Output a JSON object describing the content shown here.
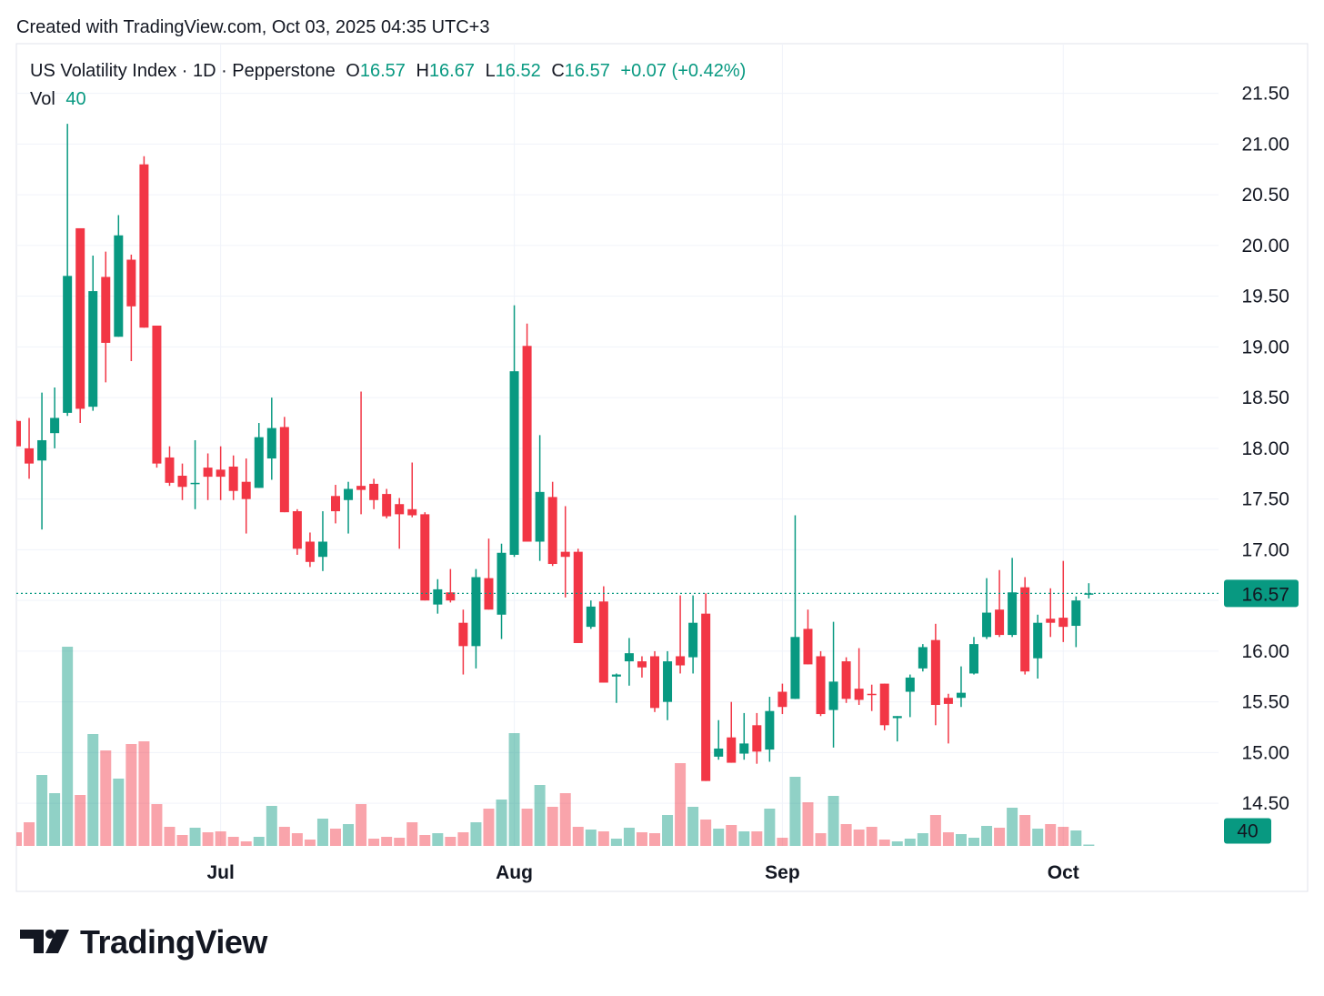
{
  "chart_data": {
    "type": "candlestick",
    "header": "Created with TradingView.com, Oct 03, 2025 04:35 UTC+3",
    "title": "US Volatility Index · 1D · Pepperstone",
    "legend": {
      "o_label": "O",
      "h_label": "H",
      "l_label": "L",
      "c_label": "C",
      "open": 16.57,
      "high": 16.67,
      "low": 16.52,
      "close": 16.57,
      "change": "+0.07 (+0.42%)",
      "vol_label": "Vol",
      "volume": 40
    },
    "footer_logo": "TradingView",
    "up_color": "#089981",
    "down_color": "#f23645",
    "grid": true,
    "categories": [
      null,
      null,
      null,
      null,
      null,
      null,
      null,
      null,
      null,
      null,
      null,
      null,
      null,
      null,
      null,
      null,
      "Jul",
      null,
      null,
      null,
      null,
      null,
      null,
      null,
      null,
      null,
      null,
      null,
      null,
      null,
      null,
      null,
      null,
      null,
      null,
      null,
      null,
      null,
      null,
      "Aug",
      null,
      null,
      null,
      null,
      null,
      null,
      null,
      null,
      null,
      null,
      null,
      null,
      null,
      null,
      null,
      null,
      null,
      null,
      null,
      null,
      "Sep",
      null,
      null,
      null,
      null,
      null,
      null,
      null,
      null,
      null,
      null,
      null,
      null,
      null,
      null,
      null,
      null,
      null,
      null,
      null,
      null,
      null,
      "Oct",
      null,
      null
    ],
    "open": [
      18.27,
      18.0,
      17.88,
      18.15,
      18.35,
      20.17,
      18.41,
      19.69,
      19.1,
      19.86,
      20.8,
      19.21,
      17.91,
      17.73,
      17.65,
      17.81,
      17.79,
      17.82,
      17.67,
      17.61,
      17.9,
      18.21,
      17.38,
      17.08,
      16.93,
      17.53,
      17.49,
      17.63,
      17.65,
      17.55,
      17.45,
      17.4,
      17.35,
      16.46,
      16.58,
      16.28,
      16.05,
      16.72,
      16.36,
      16.95,
      19.01,
      17.08,
      17.52,
      16.98,
      16.98,
      16.24,
      16.49,
      15.75,
      15.9,
      15.9,
      15.95,
      15.5,
      15.95,
      15.94,
      16.37,
      14.96,
      15.15,
      14.99,
      15.27,
      15.03,
      15.6,
      15.53,
      16.22,
      15.95,
      15.42,
      15.9,
      15.63,
      15.58,
      15.68,
      15.34,
      15.6,
      15.83,
      16.11,
      15.54,
      15.54,
      15.78,
      16.14,
      16.41,
      16.16,
      16.63,
      15.93,
      16.32,
      16.33,
      16.25,
      16.57
    ],
    "high": [
      18.28,
      18.3,
      18.55,
      18.6,
      21.2,
      20.17,
      19.9,
      19.94,
      20.3,
      19.91,
      20.88,
      19.21,
      18.02,
      17.85,
      18.08,
      17.95,
      18.02,
      17.93,
      17.9,
      18.25,
      18.5,
      18.31,
      17.4,
      17.17,
      17.38,
      17.64,
      17.67,
      18.56,
      17.7,
      17.6,
      17.51,
      17.86,
      17.37,
      16.71,
      16.81,
      16.41,
      16.81,
      17.11,
      17.06,
      19.41,
      19.23,
      18.13,
      17.67,
      17.43,
      17.01,
      16.5,
      16.64,
      15.78,
      16.13,
      15.95,
      16.0,
      16.0,
      16.55,
      16.55,
      16.57,
      15.32,
      15.5,
      15.39,
      15.39,
      15.55,
      15.68,
      17.34,
      16.41,
      16.0,
      16.29,
      15.94,
      16.03,
      15.67,
      15.68,
      15.36,
      15.77,
      16.07,
      16.27,
      15.58,
      15.85,
      16.14,
      16.72,
      16.8,
      16.92,
      16.73,
      16.36,
      16.62,
      16.89,
      16.54,
      16.67
    ],
    "low": [
      18.02,
      17.7,
      17.2,
      18.0,
      18.32,
      18.25,
      18.37,
      18.65,
      19.1,
      18.86,
      19.19,
      17.81,
      17.63,
      17.49,
      17.4,
      17.49,
      17.49,
      17.49,
      17.16,
      17.61,
      17.69,
      17.37,
      16.95,
      16.83,
      16.79,
      17.26,
      17.16,
      17.35,
      17.4,
      17.31,
      17.01,
      17.32,
      16.5,
      16.37,
      16.48,
      15.77,
      15.83,
      16.41,
      16.12,
      16.93,
      17.08,
      16.89,
      16.84,
      16.53,
      16.08,
      16.22,
      15.69,
      15.49,
      15.66,
      15.74,
      15.4,
      15.32,
      15.78,
      15.78,
      14.72,
      14.93,
      14.9,
      14.93,
      14.89,
      14.91,
      15.38,
      15.53,
      15.87,
      15.36,
      15.05,
      15.49,
      15.47,
      15.41,
      15.22,
      15.11,
      15.35,
      15.8,
      15.27,
      15.09,
      15.45,
      15.77,
      16.12,
      16.14,
      16.14,
      15.77,
      15.73,
      16.14,
      16.09,
      16.04,
      16.52
    ],
    "close": [
      18.02,
      17.85,
      18.08,
      18.3,
      19.7,
      18.39,
      19.55,
      19.04,
      20.1,
      19.4,
      19.19,
      17.85,
      17.66,
      17.62,
      17.66,
      17.72,
      17.72,
      17.58,
      17.5,
      18.11,
      18.2,
      17.37,
      17.01,
      16.88,
      17.08,
      17.38,
      17.6,
      17.59,
      17.49,
      17.33,
      17.35,
      17.34,
      16.5,
      16.61,
      16.5,
      16.05,
      16.73,
      16.41,
      16.97,
      18.76,
      17.08,
      17.57,
      16.86,
      16.93,
      16.08,
      16.44,
      15.69,
      15.77,
      15.98,
      15.84,
      15.44,
      15.9,
      15.86,
      16.28,
      14.72,
      15.04,
      14.9,
      15.09,
      15.01,
      15.41,
      15.45,
      16.14,
      15.87,
      15.38,
      15.7,
      15.53,
      15.52,
      15.57,
      15.27,
      15.36,
      15.74,
      16.04,
      15.47,
      15.48,
      15.59,
      16.07,
      16.38,
      16.16,
      16.58,
      15.8,
      16.28,
      16.28,
      16.24,
      16.5,
      16.57
    ],
    "volume": [
      405,
      702,
      2106,
      1566,
      5913,
      1512,
      3321,
      2835,
      1998,
      3024,
      3105,
      1242,
      567,
      324,
      540,
      405,
      432,
      270,
      135,
      270,
      1188,
      567,
      378,
      189,
      810,
      513,
      648,
      1242,
      216,
      270,
      243,
      702,
      324,
      378,
      270,
      405,
      702,
      1107,
      1377,
      3348,
      1107,
      1809,
      1161,
      1566,
      567,
      486,
      432,
      216,
      540,
      405,
      378,
      918,
      2457,
      1161,
      783,
      513,
      621,
      432,
      432,
      1107,
      243,
      2052,
      1296,
      378,
      1485,
      648,
      486,
      567,
      189,
      135,
      216,
      378,
      918,
      405,
      351,
      243,
      594,
      540,
      1134,
      918,
      513,
      648,
      567,
      459,
      40
    ],
    "ylim": [
      14.08,
      21.99
    ],
    "yticks": [
      {
        "value": 14.5,
        "label": "14.50"
      },
      {
        "value": 15,
        "label": "15.00"
      },
      {
        "value": 15.5,
        "label": "15.50"
      },
      {
        "value": 16,
        "label": "16.00"
      },
      {
        "value": 16.5,
        "label": "16.50"
      },
      {
        "value": 17,
        "label": "17.00"
      },
      {
        "value": 17.5,
        "label": "17.50"
      },
      {
        "value": 18,
        "label": "18.00"
      },
      {
        "value": 18.5,
        "label": "18.50"
      },
      {
        "value": 19,
        "label": "19.00"
      },
      {
        "value": 19.5,
        "label": "19.50"
      },
      {
        "value": 20,
        "label": "20.00"
      },
      {
        "value": 20.5,
        "label": "20.50"
      },
      {
        "value": 21,
        "label": "21.00"
      },
      {
        "value": 21.5,
        "label": "21.50"
      }
    ]
  }
}
